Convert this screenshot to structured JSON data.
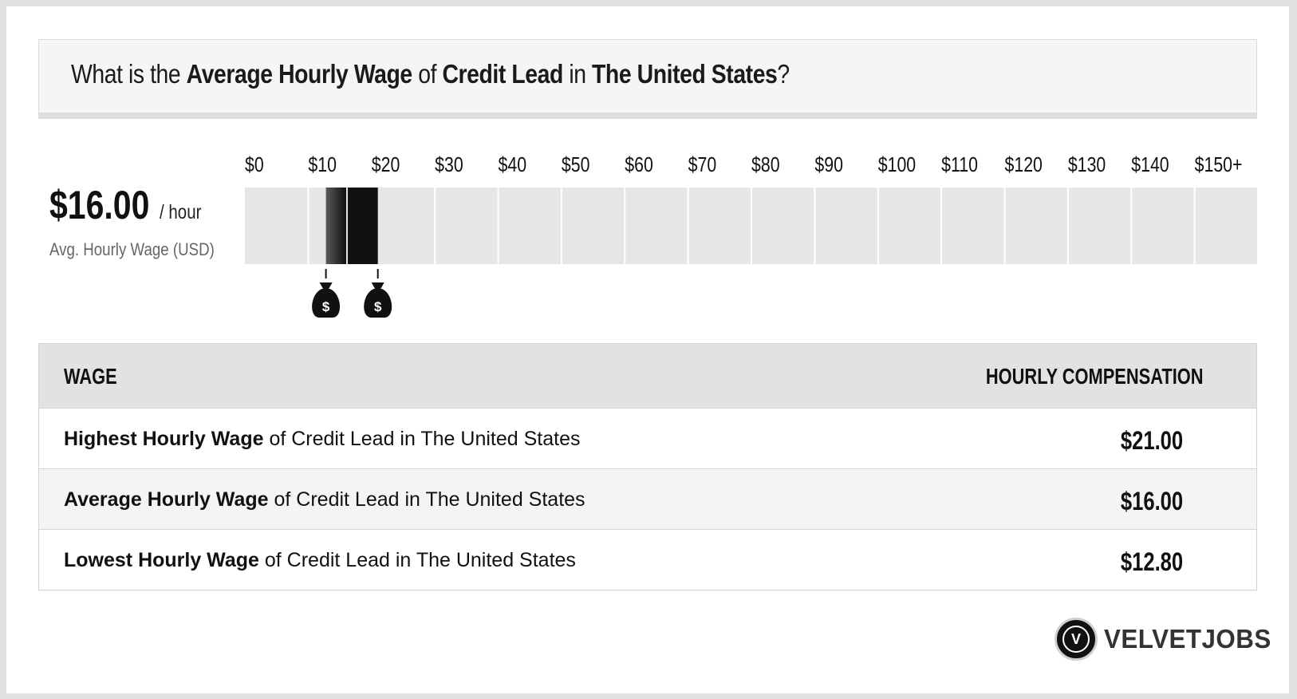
{
  "title": {
    "p1": "What is the ",
    "b1": "Average Hourly Wage",
    "p2": " of ",
    "b2": "Credit Lead",
    "p3": " in ",
    "b3": "The United States",
    "p4": "?"
  },
  "summary": {
    "value": "$16.00",
    "unit": "/ hour",
    "label": "Avg. Hourly Wage (USD)"
  },
  "chart_data": {
    "type": "bar",
    "categories": [
      "$0",
      "$10",
      "$20",
      "$30",
      "$40",
      "$50",
      "$60",
      "$70",
      "$80",
      "$90",
      "$100",
      "$110",
      "$120",
      "$130",
      "$140",
      "$150+"
    ],
    "range": {
      "low": 12.8,
      "average": 16.0,
      "high": 21.0
    },
    "markers": [
      {
        "name": "low",
        "value": 12.8,
        "icon": "money-bag-icon",
        "symbol": "$"
      },
      {
        "name": "high",
        "value": 21.0,
        "icon": "money-bag-icon",
        "symbol": "$"
      }
    ],
    "xlim": [
      0,
      160
    ],
    "colors": {
      "track": "#e6e6e6",
      "bar_dark": "#111111",
      "bar_light": "#5a5a5a"
    }
  },
  "table": {
    "header_left": "WAGE",
    "header_right": "HOURLY COMPENSATION",
    "rows": [
      {
        "bold": "Highest Hourly Wage",
        "rest": " of Credit Lead in The United States",
        "value": "$21.00"
      },
      {
        "bold": "Average Hourly Wage",
        "rest": " of Credit Lead in The United States",
        "value": "$16.00"
      },
      {
        "bold": "Lowest Hourly Wage",
        "rest": " of Credit Lead in The United States",
        "value": "$12.80"
      }
    ]
  },
  "logo": {
    "letter": "V",
    "text": "VELVETJOBS"
  }
}
